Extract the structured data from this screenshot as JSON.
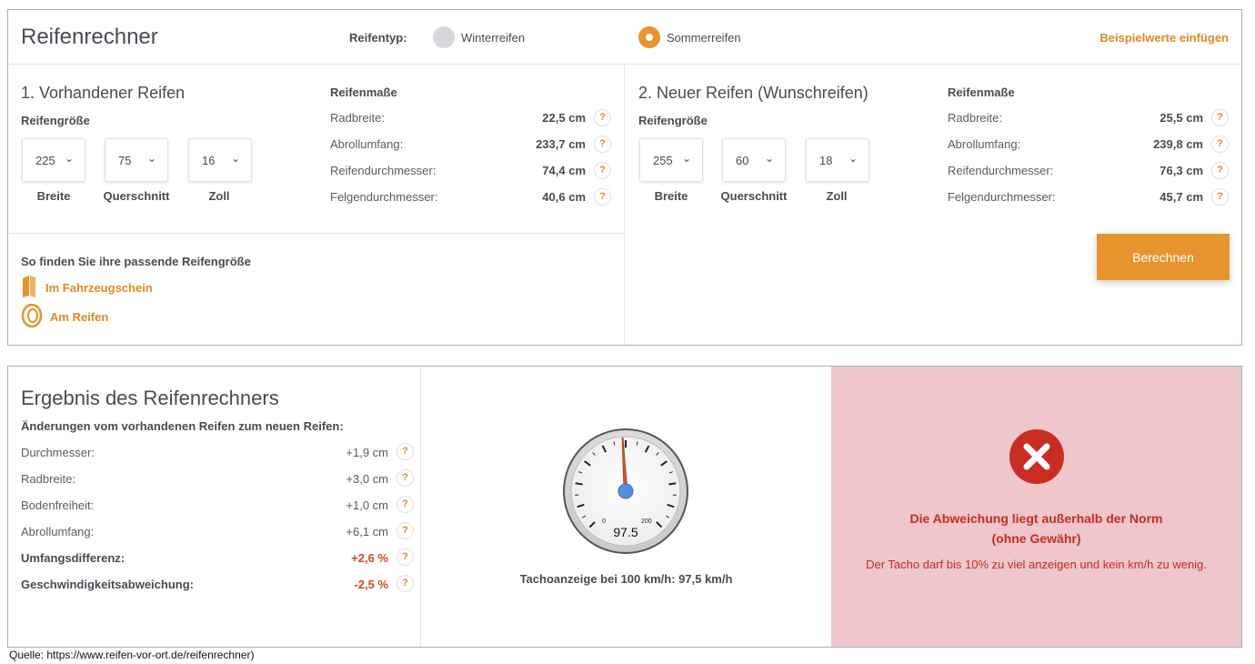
{
  "header": {
    "title": "Reifenrechner",
    "tiretype_label": "Reifentyp:",
    "options": [
      "Winterreifen",
      "Sommerreifen"
    ],
    "selected": "Sommerreifen",
    "example_link": "Beispielwerte einfügen"
  },
  "existing": {
    "title": "1. Vorhandener Reifen",
    "size_label": "Reifengröße",
    "width": "225",
    "ratio": "75",
    "rim": "16",
    "captions": [
      "Breite",
      "Querschnitt",
      "Zoll"
    ],
    "measures_title": "Reifenmaße",
    "measures": [
      {
        "label": "Radbreite:",
        "value": "22,5 cm"
      },
      {
        "label": "Abrollumfang:",
        "value": "233,7 cm"
      },
      {
        "label": "Reifendurchmesser:",
        "value": "74,4 cm"
      },
      {
        "label": "Felgendurchmesser:",
        "value": "40,6 cm"
      }
    ]
  },
  "new": {
    "title": "2. Neuer Reifen (Wunschreifen)",
    "size_label": "Reifengröße",
    "width": "255",
    "ratio": "60",
    "rim": "18",
    "captions": [
      "Breite",
      "Querschnitt",
      "Zoll"
    ],
    "measures_title": "Reifenmaße",
    "measures": [
      {
        "label": "Radbreite:",
        "value": "25,5 cm"
      },
      {
        "label": "Abrollumfang:",
        "value": "239,8 cm"
      },
      {
        "label": "Reifendurchmesser:",
        "value": "76,3 cm"
      },
      {
        "label": "Felgendurchmesser:",
        "value": "45,7 cm"
      }
    ],
    "calc_button": "Berechnen"
  },
  "find": {
    "title": "So finden Sie ihre passende Reifengröße",
    "link_registration": "Im Fahrzeugschein",
    "link_tire": "Am Reifen"
  },
  "result": {
    "title": "Ergebnis des Reifenrechners",
    "subtitle": "Änderungen vom vorhandenen Reifen zum neuen Reifen:",
    "rows": [
      {
        "label": "Durchmesser:",
        "value": "+1,9 cm"
      },
      {
        "label": "Radbreite:",
        "value": "+3,0 cm"
      },
      {
        "label": "Bodenfreiheit:",
        "value": "+1,0 cm"
      },
      {
        "label": "Abrollumfang:",
        "value": "+6,1 cm"
      },
      {
        "label": "Umfangsdifferenz:",
        "value": "+2,6 %"
      },
      {
        "label": "Geschwindigkeitsabweichung:",
        "value": "-2,5 %"
      }
    ],
    "help_mark": "?"
  },
  "tacho": {
    "reading": "97.5",
    "scale_min": "0",
    "scale_max": "200",
    "needle_value": 97.5,
    "caption": "Tachoanzeige bei 100 km/h: 97,5 km/h"
  },
  "error": {
    "title_line1": "Die Abweichung liegt außerhalb der Norm",
    "title_line2": "(ohne Gewähr)",
    "text": "Der Tacho darf bis 10% zu viel anzeigen und kein km/h zu wenig."
  },
  "source": "Quelle: https://www.reifen-vor-ort.de/reifenrechner)",
  "colors": {
    "accent": "#e7942f",
    "error": "#c92d22",
    "error_bg": "#efc6cb",
    "needle": "#d4552e",
    "needle_hub": "#5b8be0"
  }
}
